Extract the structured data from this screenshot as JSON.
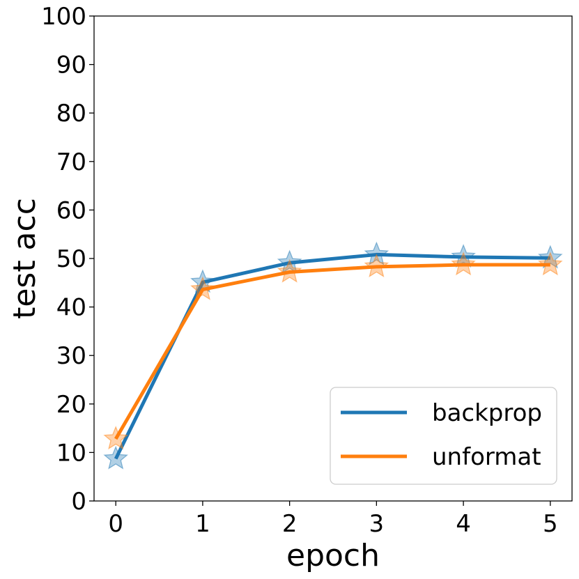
{
  "chart_data": {
    "type": "line",
    "xlabel": "epoch",
    "ylabel": "test acc",
    "xlim": [
      -0.25,
      5.25
    ],
    "ylim": [
      0,
      100
    ],
    "xticks": [
      "0",
      "1",
      "2",
      "3",
      "4",
      "5"
    ],
    "yticks": [
      "0",
      "10",
      "20",
      "30",
      "40",
      "50",
      "60",
      "70",
      "80",
      "90",
      "100"
    ],
    "x": [
      0,
      1,
      2,
      3,
      4,
      5
    ],
    "series": [
      {
        "name": "backprop",
        "color": "#1f77b4",
        "values": [
          8.7,
          45.1,
          49.1,
          50.8,
          50.3,
          50.1
        ]
      },
      {
        "name": "unformat",
        "color": "#ff7f0e",
        "values": [
          12.8,
          43.6,
          47.2,
          48.3,
          48.7,
          48.7
        ]
      }
    ],
    "marker": "star",
    "legend": {
      "position": "bottom-right"
    },
    "grid": false
  }
}
